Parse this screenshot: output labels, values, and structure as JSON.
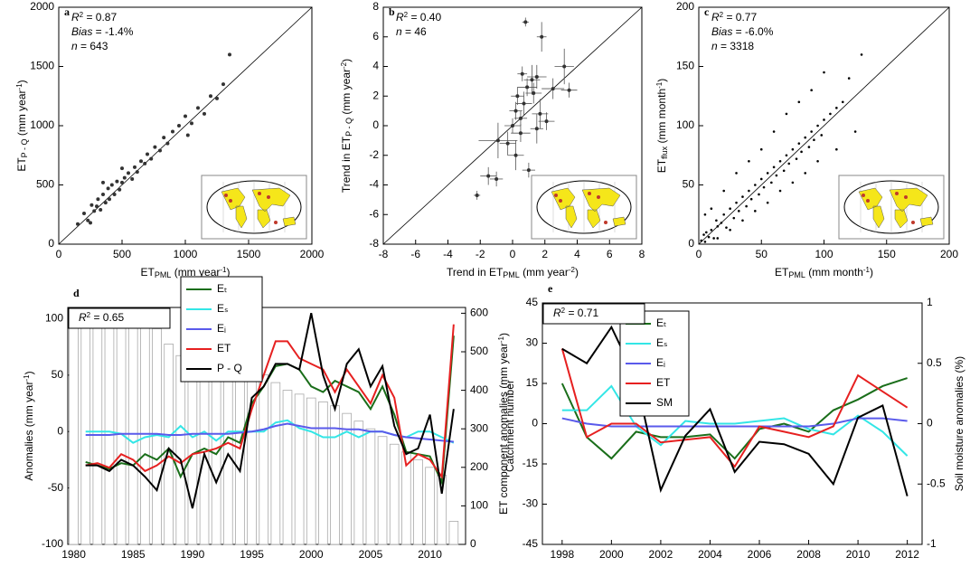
{
  "chart_data": [
    {
      "type": "scatter",
      "label": "a",
      "xlabel": [
        {
          "t": "ET"
        },
        {
          "t": "PML",
          "s": "sub"
        },
        {
          "t": " (mm year"
        },
        {
          "t": "-1",
          "s": "sup"
        },
        {
          "t": ")"
        }
      ],
      "ylabel": [
        {
          "t": "ET"
        },
        {
          "t": "P - Q",
          "s": "sub"
        },
        {
          "t": " (mm year"
        },
        {
          "t": "-1",
          "s": "sup"
        },
        {
          "t": ")"
        }
      ],
      "annotations": [
        [
          {
            "t": "R",
            "italic": true
          },
          {
            "t": "2",
            "s": "sup"
          },
          {
            "t": " = 0.87"
          }
        ],
        [
          {
            "t": "Bias",
            "italic": true
          },
          {
            "t": " = -1.4%"
          }
        ],
        [
          {
            "t": "n",
            "italic": true
          },
          {
            "t": " = 643"
          }
        ]
      ],
      "xlim": [
        0,
        2000
      ],
      "ylim": [
        0,
        2000
      ],
      "xticks": [
        0,
        500,
        1000,
        1500,
        2000
      ],
      "yticks": [
        0,
        500,
        1000,
        1500,
        2000
      ],
      "color": "#333333",
      "x": [
        150,
        200,
        230,
        260,
        280,
        300,
        310,
        330,
        350,
        370,
        390,
        400,
        420,
        440,
        460,
        480,
        500,
        520,
        550,
        580,
        600,
        620,
        650,
        680,
        700,
        730,
        760,
        800,
        830,
        860,
        900,
        950,
        1000,
        1050,
        1100,
        1150,
        1200,
        1250,
        1300,
        1350,
        1020,
        500,
        350,
        250
      ],
      "y": [
        170,
        260,
        200,
        330,
        280,
        320,
        380,
        290,
        420,
        350,
        470,
        380,
        500,
        420,
        530,
        460,
        520,
        560,
        600,
        550,
        650,
        610,
        700,
        680,
        760,
        720,
        820,
        790,
        900,
        850,
        950,
        1000,
        1080,
        1020,
        1150,
        1100,
        1250,
        1230,
        1350,
        1600,
        920,
        640,
        520,
        180
      ]
    },
    {
      "type": "scatter",
      "label": "b",
      "xlabel": [
        {
          "t": "Trend in ET"
        },
        {
          "t": "PML",
          "s": "sub"
        },
        {
          "t": " (mm year"
        },
        {
          "t": "-2",
          "s": "sup"
        },
        {
          "t": ")"
        }
      ],
      "ylabel": [
        {
          "t": "Trend in ET"
        },
        {
          "t": "P - Q",
          "s": "sub"
        },
        {
          "t": " (mm year"
        },
        {
          "t": "-2",
          "s": "sup"
        },
        {
          "t": ")"
        }
      ],
      "annotations": [
        [
          {
            "t": "R",
            "italic": true
          },
          {
            "t": "2",
            "s": "sup"
          },
          {
            "t": " = 0.40"
          }
        ],
        [
          {
            "t": "n",
            "italic": true
          },
          {
            "t": " = 46"
          }
        ]
      ],
      "xlim": [
        -8,
        8
      ],
      "ylim": [
        -8,
        8
      ],
      "xticks": [
        -8,
        -6,
        -4,
        -2,
        0,
        2,
        4,
        6,
        8
      ],
      "yticks": [
        -8,
        -6,
        -4,
        -2,
        0,
        2,
        4,
        6,
        8
      ],
      "color": "#333333",
      "x": [
        0.8,
        1.8,
        -2.2,
        -1.5,
        -1.0,
        -0.9,
        -0.3,
        0.2,
        0.5,
        0.5,
        0.7,
        0.3,
        0.9,
        1.2,
        0.6,
        1.5,
        1.3,
        1.7,
        2.1,
        2.5,
        3.2,
        3.5,
        1.5,
        1.0,
        0.0,
        0.2
      ],
      "y": [
        7.0,
        6.0,
        -4.7,
        -3.4,
        -3.6,
        -1.0,
        -1.2,
        -2.0,
        -0.5,
        0.5,
        1.5,
        2.0,
        2.6,
        3.1,
        3.5,
        3.3,
        2.2,
        0.8,
        0.3,
        2.5,
        4.0,
        2.4,
        -0.2,
        -3.0,
        0.0,
        1.0
      ],
      "xerr": [
        0.2,
        0.3,
        0.2,
        0.5,
        0.4,
        1.2,
        0.5,
        0.5,
        0.6,
        0.4,
        0.5,
        0.4,
        0.6,
        0.5,
        0.3,
        0.6,
        0.5,
        0.5,
        0.5,
        0.7,
        0.6,
        0.5,
        0.4,
        0.4,
        0.5,
        0.4
      ],
      "yerr": [
        0.3,
        1.0,
        0.3,
        0.6,
        0.5,
        1.2,
        0.8,
        1.0,
        0.6,
        0.5,
        0.8,
        0.6,
        0.6,
        1.0,
        0.5,
        0.8,
        0.7,
        1.0,
        0.6,
        0.7,
        1.2,
        0.5,
        1.0,
        0.5,
        0.5,
        0.6
      ]
    },
    {
      "type": "scatter",
      "label": "c",
      "xlabel": [
        {
          "t": "ET"
        },
        {
          "t": "PML",
          "s": "sub"
        },
        {
          "t": " (mm month"
        },
        {
          "t": "-1",
          "s": "sup"
        },
        {
          "t": ")"
        }
      ],
      "ylabel": [
        {
          "t": "ET"
        },
        {
          "t": "flux",
          "s": "sub"
        },
        {
          "t": " (mm month"
        },
        {
          "t": "-1",
          "s": "sup"
        },
        {
          "t": ")"
        }
      ],
      "annotations": [
        [
          {
            "t": "R",
            "italic": true
          },
          {
            "t": "2",
            "s": "sup"
          },
          {
            "t": " = 0.77"
          }
        ],
        [
          {
            "t": "Bias",
            "italic": true
          },
          {
            "t": " = -6.0%"
          }
        ],
        [
          {
            "t": "n",
            "italic": true
          },
          {
            "t": " = 3318"
          }
        ]
      ],
      "xlim": [
        0,
        200
      ],
      "ylim": [
        0,
        200
      ],
      "xticks": [
        0,
        50,
        100,
        150,
        200
      ],
      "yticks": [
        0,
        50,
        100,
        150,
        200
      ],
      "color": "#000000",
      "x": [
        2,
        4,
        5,
        6,
        8,
        10,
        12,
        14,
        15,
        18,
        20,
        22,
        25,
        28,
        30,
        32,
        35,
        38,
        40,
        42,
        45,
        48,
        50,
        52,
        55,
        58,
        60,
        62,
        65,
        68,
        70,
        72,
        75,
        78,
        80,
        82,
        85,
        88,
        90,
        92,
        95,
        98,
        100,
        105,
        110,
        115,
        120,
        10,
        20,
        30,
        40,
        50,
        60,
        70,
        80,
        90,
        100,
        15,
        25,
        35,
        45,
        55,
        65,
        75,
        85,
        95,
        110,
        125,
        130,
        5
      ],
      "y": [
        3,
        8,
        2,
        10,
        6,
        12,
        5,
        20,
        15,
        18,
        25,
        14,
        30,
        22,
        35,
        28,
        40,
        32,
        45,
        38,
        50,
        42,
        55,
        48,
        60,
        52,
        65,
        58,
        70,
        62,
        75,
        68,
        80,
        72,
        85,
        78,
        90,
        82,
        95,
        88,
        100,
        92,
        105,
        110,
        115,
        120,
        140,
        30,
        45,
        60,
        70,
        80,
        95,
        110,
        120,
        130,
        145,
        5,
        12,
        20,
        28,
        35,
        45,
        52,
        60,
        70,
        80,
        95,
        160,
        25
      ]
    },
    {
      "type": "line",
      "label": "d",
      "ylabel": [
        {
          "t": "Anomalies (mm year"
        },
        {
          "t": "-1",
          "s": "sup"
        },
        {
          "t": ")"
        }
      ],
      "y2label": [
        {
          "t": "Catchment number"
        }
      ],
      "annotations": [
        [
          {
            "t": "R",
            "italic": true
          },
          {
            "t": "2",
            "s": "sup"
          },
          {
            "t": " = 0.65"
          }
        ]
      ],
      "xlim": [
        1979.5,
        2013
      ],
      "ylim": [
        -100,
        110
      ],
      "y2lim": [
        0,
        615
      ],
      "xticks": [
        1980,
        1985,
        1990,
        1995,
        2000,
        2005,
        2010
      ],
      "yticks": [
        -100,
        -50,
        0,
        50,
        100
      ],
      "y2ticks": [
        0,
        100,
        200,
        300,
        400,
        500,
        600
      ],
      "x": [
        1980,
        1981,
        1982,
        1983,
        1984,
        1985,
        1986,
        1987,
        1988,
        1989,
        1990,
        1991,
        1992,
        1993,
        1994,
        1995,
        1996,
        1997,
        1998,
        1999,
        2000,
        2001,
        2002,
        2003,
        2004,
        2005,
        2006,
        2007,
        2008,
        2009,
        2010,
        2011,
        2012
      ],
      "bars": {
        "axis": "y2",
        "color": "#aaaaaa",
        "values": [
          565,
          565,
          570,
          575,
          580,
          580,
          575,
          560,
          520,
          490,
          480,
          480,
          470,
          470,
          460,
          450,
          440,
          420,
          400,
          390,
          380,
          370,
          360,
          340,
          320,
          300,
          280,
          260,
          240,
          220,
          200,
          180,
          60
        ]
      },
      "series": [
        {
          "name": "Eₜ",
          "color": "#1a6e1a",
          "values": [
            null,
            -27,
            -30,
            -33,
            -28,
            -30,
            -20,
            -25,
            -15,
            -40,
            -20,
            -15,
            -20,
            -5,
            -10,
            25,
            40,
            58,
            60,
            55,
            40,
            35,
            45,
            40,
            35,
            20,
            40,
            15,
            -18,
            -20,
            -22,
            -45,
            85
          ]
        },
        {
          "name": "Eₛ",
          "color": "#33e6e6",
          "values": [
            null,
            0,
            0,
            0,
            -2,
            -10,
            -5,
            -3,
            -5,
            5,
            -5,
            0,
            -8,
            0,
            0,
            0,
            0,
            8,
            10,
            3,
            0,
            -5,
            -5,
            0,
            -5,
            0,
            0,
            -3,
            -5,
            0,
            0,
            -5,
            -10
          ]
        },
        {
          "name": "Eᵢ",
          "color": "#5a5aeb",
          "values": [
            null,
            -3,
            -3,
            -3,
            -2,
            -2,
            -2,
            -2,
            -3,
            -3,
            -2,
            -2,
            -2,
            -2,
            -1,
            0,
            2,
            5,
            7,
            5,
            3,
            3,
            3,
            2,
            2,
            0,
            0,
            -3,
            -5,
            -6,
            -7,
            -8,
            -9
          ]
        },
        {
          "name": "ET",
          "color": "#e62020",
          "values": [
            null,
            -30,
            -28,
            -32,
            -20,
            -25,
            -35,
            -30,
            -22,
            -28,
            -20,
            -18,
            -15,
            -10,
            -15,
            20,
            50,
            80,
            80,
            65,
            60,
            55,
            35,
            55,
            40,
            25,
            50,
            30,
            -30,
            -20,
            -25,
            -40,
            95
          ]
        },
        {
          "name": "P - Q",
          "color": "#000000",
          "values": [
            null,
            -30,
            -30,
            -35,
            -25,
            -30,
            -40,
            -52,
            -15,
            -25,
            -68,
            -20,
            -45,
            -20,
            -35,
            30,
            40,
            60,
            60,
            55,
            105,
            50,
            20,
            60,
            73,
            40,
            58,
            5,
            -20,
            -15,
            15,
            -55,
            20
          ]
        }
      ]
    },
    {
      "type": "line",
      "label": "e",
      "ylabel": [
        {
          "t": "ET component anomalies (mm year"
        },
        {
          "t": "-1",
          "s": "sup"
        },
        {
          "t": ")"
        }
      ],
      "y2label": [
        {
          "t": "Soil moisture anomalies (%)"
        }
      ],
      "annotations": [
        [
          {
            "t": "R",
            "italic": true
          },
          {
            "t": "2",
            "s": "sup"
          },
          {
            "t": " = 0.71"
          }
        ]
      ],
      "xlim": [
        1997.2,
        2012.6
      ],
      "ylim": [
        -45,
        45
      ],
      "y2lim": [
        -1,
        1
      ],
      "xticks": [
        1998,
        2000,
        2002,
        2004,
        2006,
        2008,
        2010,
        2012
      ],
      "yticks": [
        -45,
        -30,
        -15,
        0,
        15,
        30,
        45
      ],
      "y2ticks": [
        -1,
        -0.5,
        0,
        0.5,
        1
      ],
      "x": [
        1998,
        1999,
        2000,
        2001,
        2002,
        2003,
        2004,
        2005,
        2006,
        2007,
        2008,
        2009,
        2010,
        2011,
        2012
      ],
      "series": [
        {
          "name": "Eₜ",
          "color": "#1a6e1a",
          "values": [
            15,
            -5,
            -13,
            -3,
            -5,
            -5,
            -4,
            -13,
            -2,
            0,
            -3,
            5,
            9,
            14,
            17
          ]
        },
        {
          "name": "Eₛ",
          "color": "#33e6e6",
          "values": [
            5,
            5,
            14,
            -1,
            -8,
            1,
            0,
            0,
            1,
            2,
            -2,
            -4,
            3,
            -3,
            -12
          ]
        },
        {
          "name": "Eᵢ",
          "color": "#5a5aeb",
          "values": [
            2,
            0,
            -1,
            -1,
            -1,
            -1,
            -1,
            -1,
            -1,
            -1,
            -1,
            0,
            2,
            2,
            1
          ]
        },
        {
          "name": "ET",
          "color": "#e62020",
          "values": [
            28,
            -5,
            0,
            0,
            -7,
            -6,
            -5,
            -16,
            -1,
            -3,
            -5,
            -1,
            18,
            12,
            6
          ]
        },
        {
          "name": "SM",
          "color": "#000000",
          "axis": "y2",
          "values": [
            0.62,
            0.5,
            0.8,
            0.37,
            -0.55,
            -0.1,
            0.12,
            -0.4,
            -0.15,
            -0.17,
            -0.25,
            -0.5,
            0.05,
            0.15,
            -0.6
          ]
        }
      ]
    }
  ]
}
